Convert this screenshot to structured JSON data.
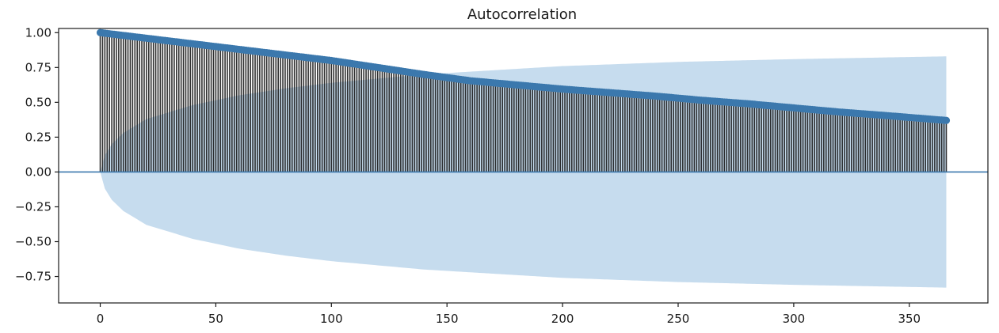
{
  "chart_data": {
    "type": "bar",
    "title": "Autocorrelation",
    "xlabel": "",
    "ylabel": "",
    "xlim": [
      -18,
      384
    ],
    "ylim": [
      -0.94,
      1.03
    ],
    "x_ticks": [
      0,
      50,
      100,
      150,
      200,
      250,
      300,
      350
    ],
    "x_tick_labels": [
      "0",
      "50",
      "100",
      "150",
      "200",
      "250",
      "300",
      "350"
    ],
    "y_ticks": [
      1.0,
      0.75,
      0.5,
      0.25,
      0.0,
      -0.25,
      -0.5,
      -0.75
    ],
    "y_tick_labels": [
      "1.00",
      "0.75",
      "0.50",
      "0.25",
      "0.00",
      "−0.25",
      "−0.50",
      "−0.75"
    ],
    "lags": {
      "start": 0,
      "end": 366,
      "step": 1
    },
    "series": [
      {
        "kind": "acf_stems",
        "anchor_x": [
          0,
          10,
          20,
          40,
          60,
          80,
          100,
          120,
          140,
          160,
          180,
          200,
          220,
          240,
          260,
          280,
          300,
          320,
          340,
          366
        ],
        "anchor_y": [
          1.0,
          0.98,
          0.96,
          0.92,
          0.88,
          0.84,
          0.8,
          0.75,
          0.7,
          0.655,
          0.625,
          0.595,
          0.57,
          0.545,
          0.515,
          0.49,
          0.46,
          0.43,
          0.405,
          0.37
        ]
      },
      {
        "kind": "confidence_band",
        "anchor_x": [
          0,
          2,
          5,
          10,
          20,
          40,
          60,
          80,
          100,
          120,
          140,
          160,
          180,
          200,
          250,
          300,
          366
        ],
        "anchor_upper": [
          0.0,
          0.12,
          0.2,
          0.28,
          0.38,
          0.48,
          0.55,
          0.6,
          0.64,
          0.67,
          0.7,
          0.72,
          0.74,
          0.76,
          0.79,
          0.81,
          0.83
        ],
        "anchor_lower": [
          0.0,
          -0.12,
          -0.2,
          -0.28,
          -0.38,
          -0.48,
          -0.55,
          -0.6,
          -0.64,
          -0.67,
          -0.7,
          -0.72,
          -0.74,
          -0.76,
          -0.79,
          -0.81,
          -0.83
        ]
      }
    ],
    "colors": {
      "marker": "#3b78ad",
      "stem": "#1a1a1a",
      "confidence_band": "#c6dcee",
      "zero_line": "#3b78ad",
      "axes": "#1a1a1a",
      "text": "#1a1a1a"
    },
    "grid": false,
    "legend": "none"
  }
}
